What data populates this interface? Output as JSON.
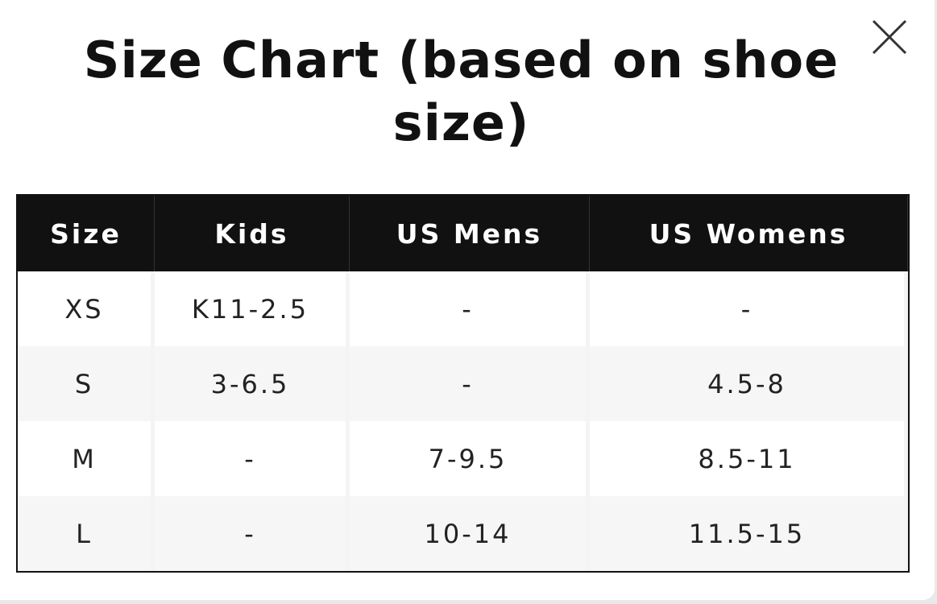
{
  "title": "Size Chart (based on shoe size)",
  "table": {
    "header": [
      "Size",
      "Kids",
      "US Mens",
      "US Womens"
    ],
    "rows": [
      [
        "XS",
        "K11-2.5",
        "-",
        "-"
      ],
      [
        "S",
        "3-6.5",
        "-",
        "4.5-8"
      ],
      [
        "M",
        "-",
        "7-9.5",
        "8.5-11"
      ],
      [
        "L",
        "-",
        "10-14",
        "11.5-15"
      ]
    ]
  }
}
